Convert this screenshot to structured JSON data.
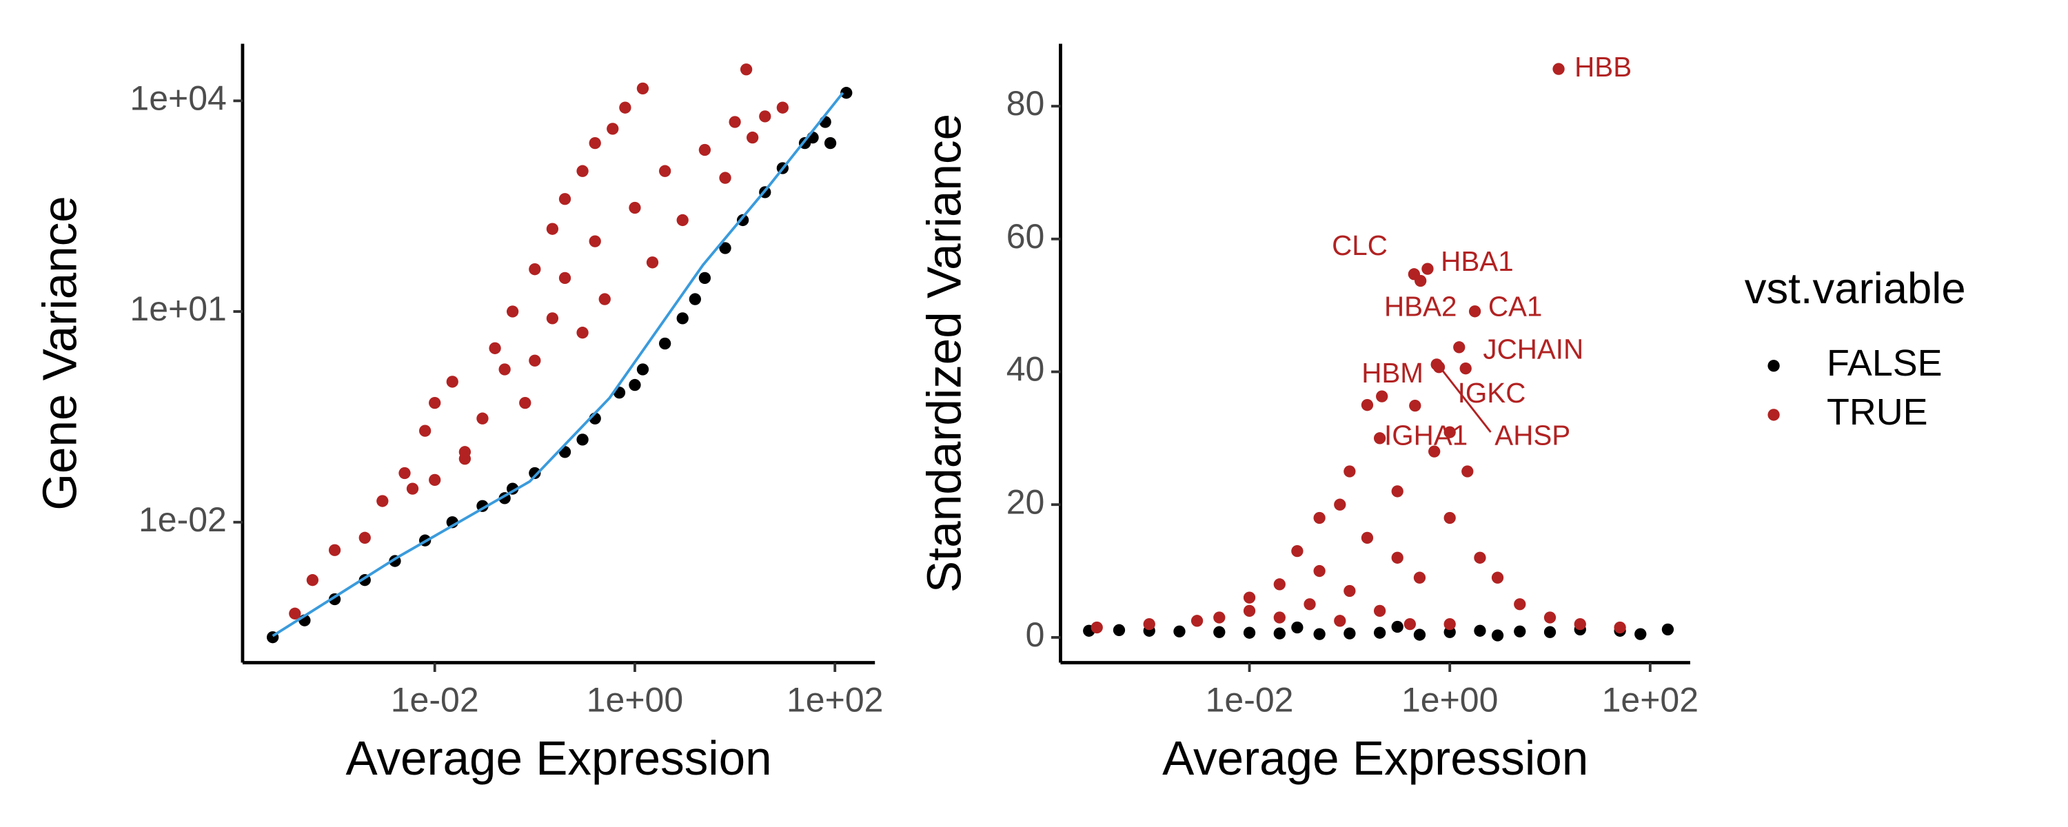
{
  "chart_data": [
    {
      "type": "scatter",
      "x_label": "Average Expression",
      "y_label": "Gene Variance",
      "xscale": "log",
      "yscale": "log",
      "xlim": [
        0.00012,
        251
      ],
      "ylim": [
        0.0001,
        65000
      ],
      "xticks": [
        {
          "value": 0.01,
          "label": "1e-02"
        },
        {
          "value": 1,
          "label": "1e+00"
        },
        {
          "value": 100,
          "label": "1e+02"
        }
      ],
      "yticks": [
        {
          "value": 0.01,
          "label": "1e-02"
        },
        {
          "value": 10,
          "label": "1e+01"
        },
        {
          "value": 10000,
          "label": "1e+04"
        }
      ],
      "series": [
        {
          "name": "FALSE",
          "color": "#000000",
          "x": [
            0.00024,
            0.0005,
            0.001,
            0.002,
            0.004,
            0.008,
            0.015,
            0.03,
            0.06,
            0.1,
            0.2,
            0.4,
            0.7,
            1.2,
            2,
            3,
            5,
            8,
            12,
            20,
            30,
            50,
            80,
            130,
            60,
            90,
            0.05,
            0.3,
            1,
            4
          ],
          "values": [
            0.00023,
            0.0004,
            0.0008,
            0.0015,
            0.0028,
            0.0055,
            0.01,
            0.017,
            0.03,
            0.05,
            0.1,
            0.3,
            0.7,
            1.5,
            3.5,
            8,
            30,
            80,
            200,
            500,
            1100,
            2500,
            5000,
            13000,
            3000,
            2500,
            0.022,
            0.15,
            0.9,
            15
          ]
        },
        {
          "name": "TRUE",
          "color": "#B22222",
          "x": [
            0.001,
            0.003,
            0.005,
            0.008,
            0.01,
            0.015,
            0.02,
            0.03,
            0.04,
            0.05,
            0.06,
            0.08,
            0.1,
            0.1,
            0.15,
            0.15,
            0.2,
            0.2,
            0.3,
            0.3,
            0.4,
            0.4,
            0.5,
            0.6,
            0.8,
            1,
            1.2,
            1.5,
            2,
            3,
            5,
            8,
            10,
            15,
            20,
            30,
            13,
            0.0004,
            0.0006,
            0.002,
            0.006,
            0.01,
            0.02
          ],
          "values": [
            0.004,
            0.02,
            0.05,
            0.2,
            0.5,
            1,
            0.1,
            0.3,
            3,
            1.5,
            10,
            0.5,
            40,
            2,
            150,
            8,
            400,
            30,
            1000,
            5,
            2500,
            100,
            15,
            4000,
            8000,
            300,
            15000,
            50,
            1000,
            200,
            2000,
            800,
            5000,
            3000,
            6000,
            8000,
            28000,
            0.0005,
            0.0015,
            0.006,
            0.03,
            0.04,
            0.08
          ]
        }
      ],
      "fit": {
        "color": "#3A9BDC",
        "x": [
          0.00024,
          0.0043,
          0.089,
          0.56,
          4.8,
          22,
          120
        ],
        "values": [
          0.00024,
          0.0032,
          0.038,
          0.59,
          46,
          620,
          13000
        ]
      }
    },
    {
      "type": "scatter",
      "x_label": "Average Expression",
      "y_label": "Standardized Variance",
      "xscale": "log",
      "yscale": "linear",
      "xlim": [
        0.00013,
        251
      ],
      "ylim": [
        -3.8,
        89.4
      ],
      "xticks": [
        {
          "value": 0.01,
          "label": "1e-02"
        },
        {
          "value": 1,
          "label": "1e+00"
        },
        {
          "value": 100,
          "label": "1e+02"
        }
      ],
      "yticks": [
        0,
        20,
        40,
        60,
        80
      ],
      "series": [
        {
          "name": "FALSE",
          "color": "#000000",
          "x": [
            0.00025,
            0.0005,
            0.001,
            0.002,
            0.005,
            0.01,
            0.02,
            0.05,
            0.1,
            0.2,
            0.5,
            1,
            2,
            5,
            10,
            20,
            50,
            150,
            0.03,
            0.3,
            3,
            80
          ],
          "values": [
            1,
            1.1,
            1,
            0.9,
            0.8,
            0.7,
            0.6,
            0.5,
            0.6,
            0.7,
            0.4,
            0.8,
            1,
            0.9,
            0.8,
            1.2,
            1,
            1.2,
            1.5,
            1.6,
            0.3,
            0.5
          ]
        },
        {
          "name": "TRUE",
          "color": "#B22222",
          "x": [
            0.0003,
            0.001,
            0.003,
            0.005,
            0.01,
            0.01,
            0.02,
            0.02,
            0.03,
            0.04,
            0.05,
            0.05,
            0.08,
            0.1,
            0.1,
            0.15,
            0.2,
            0.2,
            0.3,
            0.3,
            0.5,
            0.7,
            1,
            1.5,
            2,
            3,
            5,
            10,
            20,
            50,
            0.4,
            1,
            0.08,
            0.15,
            0.21,
            0.45
          ],
          "values": [
            1.5,
            2,
            2.5,
            3,
            4,
            6,
            8,
            3,
            13,
            5,
            18,
            10,
            20,
            7,
            25,
            15,
            30,
            4,
            22,
            12,
            9,
            28,
            18,
            25,
            12,
            9,
            5,
            3,
            2,
            1.5,
            2,
            2,
            2.5,
            35,
            36.3,
            34.9
          ]
        }
      ],
      "labels": [
        {
          "text": "HBB",
          "x": 12.2,
          "y": 85.6
        },
        {
          "text": "CLC",
          "x": 0.44,
          "y": 54.7
        },
        {
          "text": "HBA1",
          "x": 0.6,
          "y": 55.5
        },
        {
          "text": "HBA2",
          "x": 0.51,
          "y": 53.7
        },
        {
          "text": "CA1",
          "x": 1.78,
          "y": 49.1
        },
        {
          "text": "JCHAIN",
          "x": 1.24,
          "y": 43.7
        },
        {
          "text": "HBM",
          "x": 0.74,
          "y": 41.1
        },
        {
          "text": "AHSP",
          "x": 0.78,
          "y": 40.7
        },
        {
          "text": "IGKC",
          "x": 1.44,
          "y": 40.5
        },
        {
          "text": "IGHA1",
          "x": 1.0,
          "y": 30.9
        }
      ],
      "legend_title": "vst.variable"
    }
  ]
}
